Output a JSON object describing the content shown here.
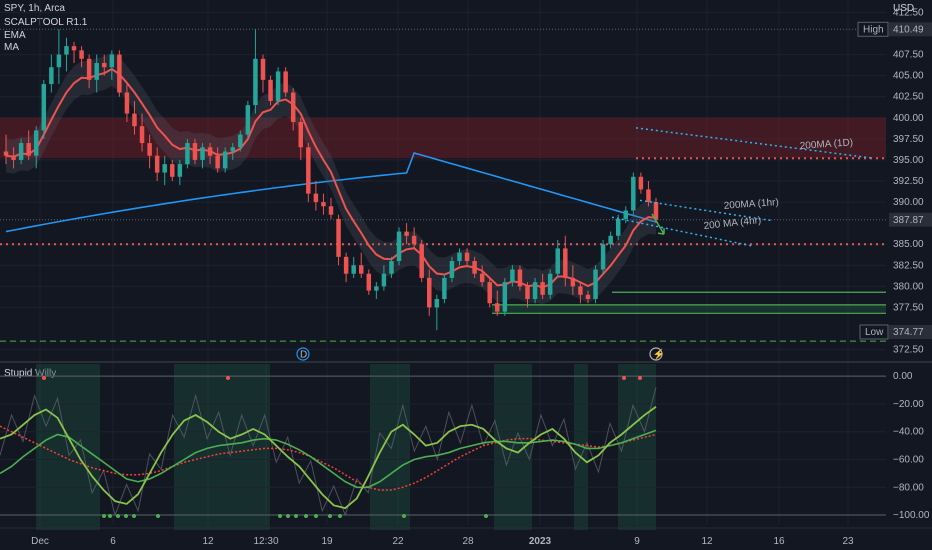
{
  "header": {
    "symbol": "SPY, 1h, Arca",
    "indicators": [
      "SCALPTOOL R1.1",
      "EMA",
      "MA"
    ],
    "currency": "USD",
    "oscillator": "Stupid Willy"
  },
  "colors": {
    "background": "#131722",
    "up": "#26a69a",
    "down": "#ef5350",
    "ema": "#ef5350",
    "ma": "#2196f3",
    "zone": "#7a1f28",
    "support": "#4caf50",
    "willy_fast": "#8bc34a",
    "willy_slow": "#4caf50",
    "willy_signal": "#f44336"
  },
  "chart_data": [
    {
      "type": "candlestick",
      "symbol": "SPY",
      "timeframe": "1h",
      "yrange": [
        371.5,
        413.5
      ],
      "price_ticks": [
        412.5,
        407.5,
        405.0,
        402.5,
        400.0,
        397.5,
        395.0,
        392.5,
        390.0,
        385.0,
        382.5,
        380.0,
        377.5,
        372.5
      ],
      "x_ticks": [
        "Dec",
        "6",
        "12",
        "12:30",
        "19",
        "22",
        "28",
        "2023",
        "9",
        "12",
        "16",
        "23"
      ],
      "price_labels": {
        "high_label": "High",
        "high_value": "410.49",
        "last_value": "387.87",
        "low_label": "Low",
        "low_value": "374.77"
      },
      "candles": [
        [
          396.0,
          398.0,
          394.5,
          395.5
        ],
        [
          395.5,
          396.5,
          394.0,
          395.0
        ],
        [
          395.0,
          397.5,
          394.5,
          397.0
        ],
        [
          397.0,
          398.5,
          395.0,
          395.5
        ],
        [
          395.5,
          399.0,
          394.0,
          398.5
        ],
        [
          398.5,
          404.5,
          397.5,
          404.0
        ],
        [
          404.0,
          407.5,
          403.0,
          406.0
        ],
        [
          406.0,
          410.5,
          404.0,
          407.5
        ],
        [
          407.5,
          409.5,
          405.5,
          408.5
        ],
        [
          408.5,
          409.0,
          406.5,
          408.0
        ],
        [
          408.0,
          408.5,
          406.0,
          407.0
        ],
        [
          407.0,
          407.5,
          403.5,
          404.5
        ],
        [
          404.5,
          407.5,
          403.0,
          406.5
        ],
        [
          406.5,
          407.5,
          405.0,
          406.0
        ],
        [
          406.0,
          408.0,
          404.5,
          407.5
        ],
        [
          407.5,
          408.0,
          402.5,
          403.0
        ],
        [
          403.0,
          404.0,
          399.5,
          400.5
        ],
        [
          400.5,
          402.0,
          398.0,
          399.0
        ],
        [
          399.0,
          400.5,
          396.0,
          397.0
        ],
        [
          397.0,
          398.0,
          394.0,
          395.5
        ],
        [
          395.5,
          396.5,
          392.5,
          393.5
        ],
        [
          393.5,
          395.5,
          392.0,
          394.5
        ],
        [
          394.5,
          395.0,
          392.5,
          393.0
        ],
        [
          393.0,
          395.0,
          392.0,
          394.5
        ],
        [
          394.5,
          397.5,
          394.0,
          397.0
        ],
        [
          397.0,
          397.5,
          394.5,
          395.0
        ],
        [
          395.0,
          397.0,
          394.0,
          396.5
        ],
        [
          396.5,
          397.0,
          394.5,
          395.5
        ],
        [
          395.5,
          396.5,
          393.5,
          394.0
        ],
        [
          394.0,
          396.5,
          393.5,
          396.0
        ],
        [
          396.0,
          397.0,
          395.0,
          396.5
        ],
        [
          396.5,
          398.5,
          396.0,
          398.0
        ],
        [
          398.0,
          402.0,
          397.5,
          401.5
        ],
        [
          401.5,
          410.5,
          400.5,
          407.0
        ],
        [
          407.0,
          407.5,
          403.0,
          404.5
        ],
        [
          404.5,
          405.0,
          401.5,
          402.0
        ],
        [
          402.0,
          406.0,
          401.5,
          405.5
        ],
        [
          405.5,
          406.0,
          402.5,
          403.0
        ],
        [
          403.0,
          403.5,
          398.5,
          399.5
        ],
        [
          399.5,
          400.0,
          395.0,
          396.5
        ],
        [
          396.5,
          397.0,
          390.0,
          391.0
        ],
        [
          391.0,
          392.5,
          389.0,
          390.0
        ],
        [
          390.0,
          391.0,
          388.5,
          389.5
        ],
        [
          389.5,
          390.5,
          388.0,
          388.5
        ],
        [
          388.0,
          388.5,
          382.5,
          383.5
        ],
        [
          383.5,
          384.0,
          380.5,
          381.5
        ],
        [
          381.5,
          383.5,
          381.0,
          382.5
        ],
        [
          382.5,
          384.0,
          381.0,
          381.5
        ],
        [
          381.5,
          382.0,
          379.0,
          379.5
        ],
        [
          379.5,
          380.5,
          378.5,
          380.0
        ],
        [
          380.0,
          382.5,
          379.5,
          381.5
        ],
        [
          381.5,
          383.5,
          381.0,
          383.0
        ],
        [
          383.0,
          387.0,
          382.5,
          386.5
        ],
        [
          386.5,
          387.5,
          385.0,
          386.0
        ],
        [
          386.0,
          387.0,
          384.5,
          385.0
        ],
        [
          385.0,
          385.5,
          380.5,
          381.0
        ],
        [
          381.0,
          382.0,
          376.5,
          377.5
        ],
        [
          377.5,
          379.0,
          374.8,
          378.5
        ],
        [
          378.5,
          381.5,
          378.0,
          381.0
        ],
        [
          381.0,
          383.5,
          380.5,
          383.0
        ],
        [
          383.0,
          384.5,
          382.5,
          384.0
        ],
        [
          384.0,
          384.5,
          382.5,
          383.0
        ],
        [
          383.0,
          383.5,
          381.0,
          381.5
        ],
        [
          381.5,
          382.5,
          380.0,
          380.5
        ],
        [
          380.5,
          381.0,
          377.5,
          378.0
        ],
        [
          378.0,
          379.5,
          376.5,
          377.0
        ],
        [
          377.0,
          381.0,
          376.5,
          380.5
        ],
        [
          380.5,
          382.5,
          380.0,
          382.0
        ],
        [
          382.0,
          382.5,
          379.5,
          380.0
        ],
        [
          380.0,
          380.5,
          377.5,
          378.5
        ],
        [
          378.5,
          381.0,
          378.0,
          380.5
        ],
        [
          380.5,
          381.5,
          378.5,
          379.0
        ],
        [
          379.0,
          382.0,
          378.5,
          381.5
        ],
        [
          381.5,
          385.5,
          381.0,
          384.5
        ],
        [
          384.5,
          386.0,
          380.0,
          381.0
        ],
        [
          381.0,
          382.5,
          379.0,
          380.0
        ],
        [
          380.0,
          380.5,
          378.0,
          379.0
        ],
        [
          379.0,
          379.5,
          378.0,
          378.5
        ],
        [
          378.5,
          382.5,
          378.0,
          382.0
        ],
        [
          382.0,
          385.5,
          381.5,
          385.0
        ],
        [
          385.0,
          386.5,
          384.5,
          386.0
        ],
        [
          386.0,
          388.5,
          385.5,
          388.0
        ],
        [
          388.0,
          389.5,
          387.5,
          389.0
        ],
        [
          389.0,
          393.5,
          388.5,
          393.0
        ],
        [
          393.0,
          393.5,
          391.0,
          391.5
        ],
        [
          391.5,
          392.5,
          389.5,
          390.0
        ],
        [
          390.0,
          390.5,
          387.5,
          387.9
        ]
      ]
    },
    {
      "type": "line",
      "name": "Stupid Willy",
      "yrange": [
        -105,
        3
      ],
      "y_ticks": [
        "0.00",
        "−20.00",
        "−40.00",
        "−60.00",
        "−80.00",
        "−100.00"
      ],
      "tick_values": [
        0,
        -20,
        -40,
        -60,
        -80,
        -100
      ],
      "fast": [
        -45,
        -42,
        -35,
        -28,
        -24,
        -30,
        -45,
        -60,
        -72,
        -82,
        -90,
        -92,
        -85,
        -70,
        -55,
        -42,
        -32,
        -28,
        -33,
        -40,
        -45,
        -42,
        -38,
        -42,
        -50,
        -58,
        -65,
        -75,
        -85,
        -93,
        -95,
        -88,
        -72,
        -55,
        -40,
        -35,
        -42,
        -50,
        -48,
        -40,
        -36,
        -35,
        -38,
        -46,
        -52,
        -55,
        -48,
        -42,
        -38,
        -45,
        -55,
        -62,
        -57,
        -48,
        -42,
        -35,
        -28,
        -22
      ],
      "slow": [
        -70,
        -65,
        -58,
        -52,
        -46,
        -42,
        -44,
        -50,
        -56,
        -62,
        -68,
        -74,
        -76,
        -74,
        -70,
        -65,
        -60,
        -55,
        -52,
        -50,
        -49,
        -48,
        -46,
        -45,
        -46,
        -49,
        -53,
        -58,
        -64,
        -70,
        -76,
        -80,
        -80,
        -76,
        -70,
        -64,
        -60,
        -58,
        -57,
        -55,
        -52,
        -50,
        -48,
        -47,
        -47,
        -48,
        -48,
        -47,
        -46,
        -47,
        -49,
        -52,
        -52,
        -50,
        -48,
        -45,
        -42,
        -39
      ],
      "signal": [
        -36,
        -40,
        -44,
        -48,
        -52,
        -56,
        -60,
        -63,
        -66,
        -68,
        -70,
        -71,
        -71,
        -70,
        -68,
        -65,
        -62,
        -60,
        -58,
        -56,
        -55,
        -54,
        -53,
        -52,
        -52,
        -53,
        -55,
        -58,
        -62,
        -66,
        -71,
        -76,
        -80,
        -82,
        -82,
        -80,
        -77,
        -73,
        -68,
        -63,
        -58,
        -54,
        -50,
        -48,
        -46,
        -45,
        -45,
        -46,
        -47,
        -48,
        -49,
        -50,
        -51,
        -50,
        -48,
        -46,
        -44,
        -42
      ]
    }
  ],
  "annotations": {
    "ma_200_1d": "200MA (1D)",
    "ma_200_1hr": "200MA (1hr)",
    "ma_200_4hr": "200 MA (4hr)",
    "dividend_marker": "D",
    "earnings_marker": "⚡"
  }
}
